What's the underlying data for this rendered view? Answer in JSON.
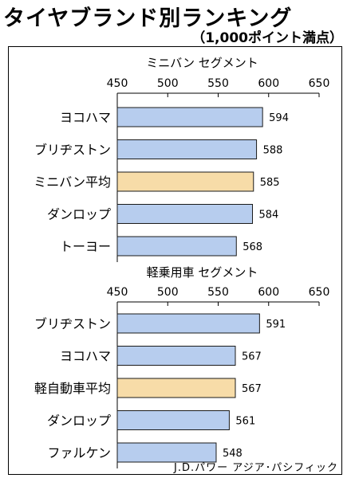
{
  "title": "タイヤブランド別ランキング",
  "subtitle": "（1,000ポイント満点）",
  "source": "J.D.パワー アジア･パシフィック",
  "colors": {
    "bar": "#b7cdee",
    "average": "#f7dca8",
    "stroke": "#1a1a1a"
  },
  "chart_data": [
    {
      "type": "bar",
      "orientation": "horizontal",
      "title": "ミニバン セグメント",
      "xlim": [
        450,
        650
      ],
      "ticks": [
        450,
        500,
        550,
        600,
        650
      ],
      "categories": [
        "ヨコハマ",
        "ブリヂストン",
        "ミニバン平均",
        "ダンロップ",
        "トーヨー"
      ],
      "values": [
        594,
        588,
        585,
        584,
        568
      ],
      "highlight": [
        "ミニバン平均"
      ]
    },
    {
      "type": "bar",
      "orientation": "horizontal",
      "title": "軽乗用車 セグメント",
      "xlim": [
        450,
        650
      ],
      "ticks": [
        450,
        500,
        550,
        600,
        650
      ],
      "categories": [
        "ブリヂストン",
        "ヨコハマ",
        "軽自動車平均",
        "ダンロップ",
        "ファルケン"
      ],
      "values": [
        591,
        567,
        567,
        561,
        548
      ],
      "highlight": [
        "軽自動車平均"
      ]
    }
  ]
}
